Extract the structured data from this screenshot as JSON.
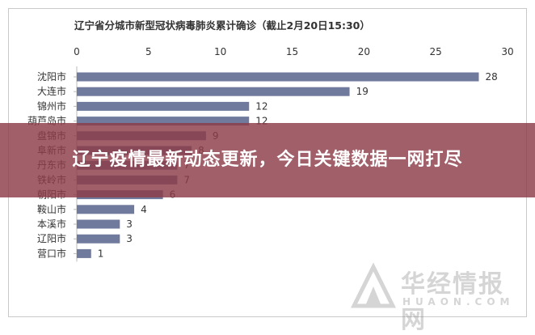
{
  "banner": {
    "headline": "辽宁疫情最新动态更新，今日关键数据一网打尽"
  },
  "watermark": {
    "cn": "华经情报网",
    "en": "HUAON.COM"
  },
  "chart_data": {
    "type": "bar",
    "orientation": "horizontal",
    "title": "辽宁省分城市新型冠状病毒肺炎累计确诊（截止2月20日15:30）",
    "categories": [
      "沈阳市",
      "大连市",
      "锦州市",
      "葫芦岛市",
      "盘锦市",
      "阜新市",
      "丹东市",
      "铁岭市",
      "朝阳市",
      "鞍山市",
      "本溪市",
      "辽阳市",
      "营口市"
    ],
    "values": [
      28,
      19,
      12,
      12,
      9,
      8,
      7,
      7,
      6,
      4,
      3,
      3,
      1
    ],
    "xlim": [
      0,
      30
    ],
    "xticks": [
      0,
      5,
      10,
      15,
      20,
      25,
      30
    ],
    "axis_position": "top",
    "grid": false,
    "legend": "none",
    "data_labels": true,
    "colors": {
      "bar": "#6f7a9c",
      "text": "#333333",
      "axis": "#bbbbbb"
    }
  }
}
